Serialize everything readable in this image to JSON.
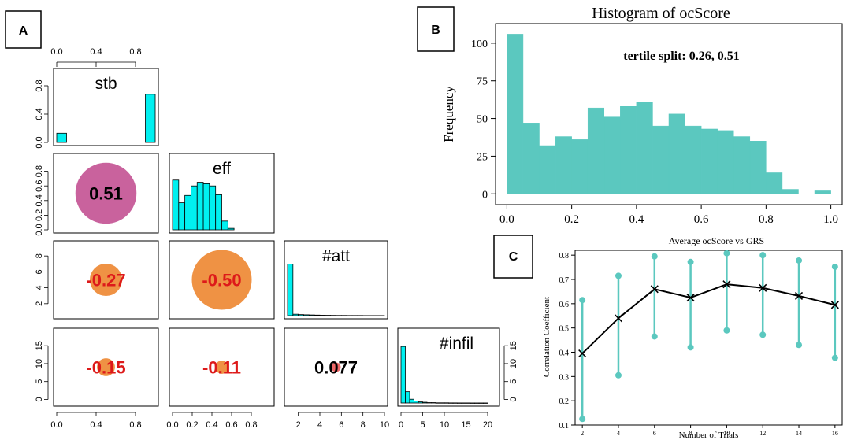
{
  "panel_labels": {
    "a": "A",
    "b": "B",
    "c": "C"
  },
  "colors": {
    "cyan": "#00F0F0",
    "teal": "#5BC8BF",
    "magenta": "#C65A98",
    "orange": "#EE8C3A",
    "red": "#DD1A1A",
    "black": "#000000"
  },
  "chart_data": [
    {
      "id": "pairs",
      "type": "scatter-matrix",
      "variables": [
        "stb",
        "eff",
        "#att",
        "#infil"
      ],
      "top_axis_ticks": [
        "0.0",
        "0.4",
        "0.8"
      ],
      "diagonal": [
        {
          "var": "stb",
          "type": "bar",
          "xlim": [
            0,
            1
          ],
          "ylim": [
            0,
            1
          ],
          "y_ticks": [
            "0.0",
            "0.4",
            "0.8"
          ],
          "bars": [
            {
              "x0": 0.0,
              "x1": 0.1,
              "value": 0.13
            },
            {
              "x0": 0.9,
              "x1": 1.0,
              "value": 0.68
            }
          ]
        },
        {
          "var": "eff",
          "type": "bar",
          "xlim": [
            0,
            1
          ],
          "ylim": [
            0,
            1
          ],
          "bin_start": 0.0,
          "bin_width": 0.0625,
          "values": [
            0.68,
            0.37,
            0.47,
            0.6,
            0.65,
            0.63,
            0.6,
            0.48,
            0.12,
            0.02
          ]
        },
        {
          "var": "#att",
          "type": "bar",
          "xlim": [
            1,
            10
          ],
          "ylim": [
            0,
            1
          ],
          "bin_start": 1.0,
          "bin_width": 0.5,
          "values": [
            0.72,
            0.02,
            0.015,
            0.012,
            0.01,
            0.008,
            0.006,
            0.005,
            0.004,
            0.003,
            0.003,
            0.002,
            0.002,
            0.002,
            0.001,
            0.001,
            0.001,
            0.001
          ]
        },
        {
          "var": "#infil",
          "type": "bar",
          "xlim": [
            0,
            22
          ],
          "ylim": [
            0,
            19
          ],
          "y_ticks": [
            "0",
            "5",
            "10",
            "15"
          ],
          "bin_start": 0.0,
          "bin_width": 1.0,
          "values": [
            15,
            3,
            1,
            0.5,
            0.3,
            0.2,
            0.1,
            0.1,
            0.05,
            0.05,
            0.05,
            0.03,
            0.03,
            0.02,
            0.02,
            0.02,
            0.01,
            0.01,
            0.01,
            0.01
          ]
        }
      ],
      "correlations": [
        {
          "row": 1,
          "col": 0,
          "label": "0.51",
          "r": 0.51,
          "fill": "#C65A98",
          "text_color": "#000000"
        },
        {
          "row": 2,
          "col": 0,
          "label": "-0.27",
          "r": -0.27,
          "fill": "#EE8C3A",
          "text_color": "#DD1A1A"
        },
        {
          "row": 2,
          "col": 1,
          "label": "-0.50",
          "r": -0.5,
          "fill": "#EE8C3A",
          "text_color": "#DD1A1A"
        },
        {
          "row": 3,
          "col": 0,
          "label": "-0.15",
          "r": -0.15,
          "fill": "#EE8C3A",
          "text_color": "#DD1A1A"
        },
        {
          "row": 3,
          "col": 1,
          "label": "-0.11",
          "r": -0.11,
          "fill": "#EE8C3A",
          "text_color": "#DD1A1A"
        },
        {
          "row": 3,
          "col": 2,
          "label": "0.077",
          "r": 0.077,
          "fill": "#EE6060",
          "text_color": "#000000"
        }
      ],
      "left_axes": [
        {
          "row": 0,
          "ticks": [
            "0.0",
            "0.4",
            "0.8"
          ]
        },
        {
          "row": 1,
          "ticks": [
            "0.0",
            "0.2",
            "0.4",
            "0.6",
            "0.8"
          ]
        },
        {
          "row": 2,
          "ticks": [
            "2",
            "4",
            "6",
            "8"
          ]
        },
        {
          "row": 3,
          "ticks": [
            "0",
            "5",
            "10",
            "15"
          ]
        }
      ],
      "bottom_axes": [
        {
          "col": 0,
          "ticks": [
            "0.0",
            "0.4",
            "0.8"
          ]
        },
        {
          "col": 1,
          "ticks": [
            "0.0",
            "0.2",
            "0.4",
            "0.6",
            "0.8"
          ]
        },
        {
          "col": 2,
          "ticks": [
            "2",
            "4",
            "6",
            "8",
            "10"
          ]
        },
        {
          "col": 3,
          "ticks": [
            "0",
            "5",
            "10",
            "15",
            "20"
          ]
        }
      ]
    },
    {
      "id": "histogram",
      "type": "bar",
      "title": "Histogram of ocScore",
      "annotation": "tertile split: 0.26, 0.51",
      "xlabel": "",
      "ylabel": "Frequency",
      "xlim": [
        0,
        1
      ],
      "ylim": [
        0,
        110
      ],
      "x_ticks": [
        "0.0",
        "0.2",
        "0.4",
        "0.6",
        "0.8",
        "1.0"
      ],
      "y_ticks": [
        "0",
        "25",
        "50",
        "75",
        "100"
      ],
      "bin_width": 0.05,
      "bins_start": 0.0,
      "values": [
        106,
        47,
        32,
        38,
        36,
        57,
        51,
        58,
        61,
        45,
        53,
        45,
        43,
        42,
        38,
        35,
        14,
        3,
        0,
        2
      ]
    },
    {
      "id": "lineplot",
      "type": "line",
      "title": "Average ocScore vs GRS",
      "xlabel": "Number of Trials",
      "ylabel": "Correlation Coefficient",
      "xlim": [
        1.6,
        16.4
      ],
      "ylim": [
        0.1,
        0.82
      ],
      "x_ticks": [
        "2",
        "4",
        "6",
        "8",
        "10",
        "12",
        "14",
        "16"
      ],
      "y_ticks": [
        "0.1",
        "0.2",
        "0.3",
        "0.4",
        "0.5",
        "0.6",
        "0.7",
        "0.8"
      ],
      "x": [
        2,
        4,
        6,
        8,
        10,
        12,
        14,
        16
      ],
      "mean": [
        0.395,
        0.54,
        0.66,
        0.625,
        0.68,
        0.665,
        0.632,
        0.595
      ],
      "upper": [
        0.615,
        0.715,
        0.795,
        0.772,
        0.808,
        0.8,
        0.778,
        0.752
      ],
      "lower": [
        0.125,
        0.305,
        0.465,
        0.42,
        0.49,
        0.472,
        0.43,
        0.377
      ]
    }
  ]
}
